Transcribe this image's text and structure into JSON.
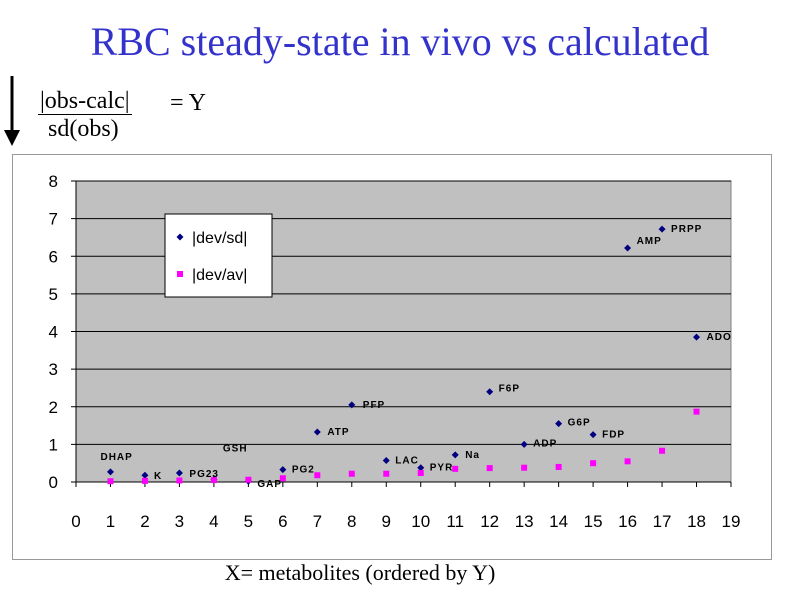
{
  "slide": {
    "title": "RBC steady-state in vivo vs calculated",
    "formula": {
      "numerator": "|obs-calc|",
      "denominator": "sd(obs)",
      "rhs": "= Y"
    },
    "x_caption": "X= metabolites (ordered by Y)"
  },
  "chart_data": {
    "type": "scatter",
    "title": "",
    "xlabel": "X= metabolites (ordered by Y)",
    "ylabel": "",
    "xlim": [
      0,
      19
    ],
    "ylim": [
      0,
      8
    ],
    "xticks": [
      0,
      1,
      2,
      3,
      4,
      5,
      6,
      7,
      8,
      9,
      10,
      11,
      12,
      13,
      14,
      15,
      16,
      17,
      18,
      19
    ],
    "yticks": [
      0,
      1,
      2,
      3,
      4,
      5,
      6,
      7,
      8
    ],
    "grid": "horizontal",
    "plot_background": "#c0c0c0",
    "legend": {
      "placement": "upper-left",
      "entries": [
        "|dev/sd|",
        "|dev/av|"
      ]
    },
    "series": [
      {
        "name": "|dev/sd|",
        "color": "#000080",
        "marker": "diamond",
        "x": [
          1,
          2,
          3,
          4,
          5,
          6,
          7,
          8,
          9,
          10,
          11,
          12,
          13,
          14,
          15,
          16,
          17,
          18
        ],
        "y": [
          0.27,
          0.18,
          0.24,
          0.07,
          0.02,
          0.33,
          1.33,
          2.05,
          0.57,
          0.38,
          0.72,
          2.4,
          1.0,
          1.55,
          1.26,
          6.22,
          6.72,
          3.85
        ]
      },
      {
        "name": "|dev/av|",
        "color": "#ff00ff",
        "marker": "square",
        "x": [
          1,
          2,
          3,
          4,
          5,
          6,
          7,
          8,
          9,
          10,
          11,
          12,
          13,
          14,
          15,
          16,
          17,
          18
        ],
        "y": [
          0.02,
          0.03,
          0.04,
          0.05,
          0.06,
          0.1,
          0.18,
          0.22,
          0.22,
          0.24,
          0.35,
          0.37,
          0.38,
          0.4,
          0.5,
          0.55,
          0.83,
          1.87
        ]
      }
    ],
    "annotations": [
      {
        "text": "DHAP",
        "x": 1,
        "y": 0.27
      },
      {
        "text": "K",
        "x": 2,
        "y": 0.18
      },
      {
        "text": "PG23",
        "x": 3,
        "y": 0.24
      },
      {
        "text": "GSH",
        "x": 4,
        "y": 0.07
      },
      {
        "text": "GAP",
        "x": 5,
        "y": 0.02
      },
      {
        "text": "PG2",
        "x": 6,
        "y": 0.33
      },
      {
        "text": "ATP",
        "x": 7,
        "y": 1.33
      },
      {
        "text": "PFP",
        "x": 8,
        "y": 2.05
      },
      {
        "text": "LAC",
        "x": 9,
        "y": 0.57
      },
      {
        "text": "PYR",
        "x": 10,
        "y": 0.38
      },
      {
        "text": "Na",
        "x": 11,
        "y": 0.72
      },
      {
        "text": "F6P",
        "x": 12,
        "y": 2.4
      },
      {
        "text": "ADP",
        "x": 13,
        "y": 1.0
      },
      {
        "text": "G6P",
        "x": 14,
        "y": 1.55
      },
      {
        "text": "FDP",
        "x": 15,
        "y": 1.26
      },
      {
        "text": "AMP",
        "x": 16,
        "y": 6.22
      },
      {
        "text": "PRPP",
        "x": 17,
        "y": 6.72
      },
      {
        "text": "ADO",
        "x": 18,
        "y": 3.85
      }
    ]
  }
}
